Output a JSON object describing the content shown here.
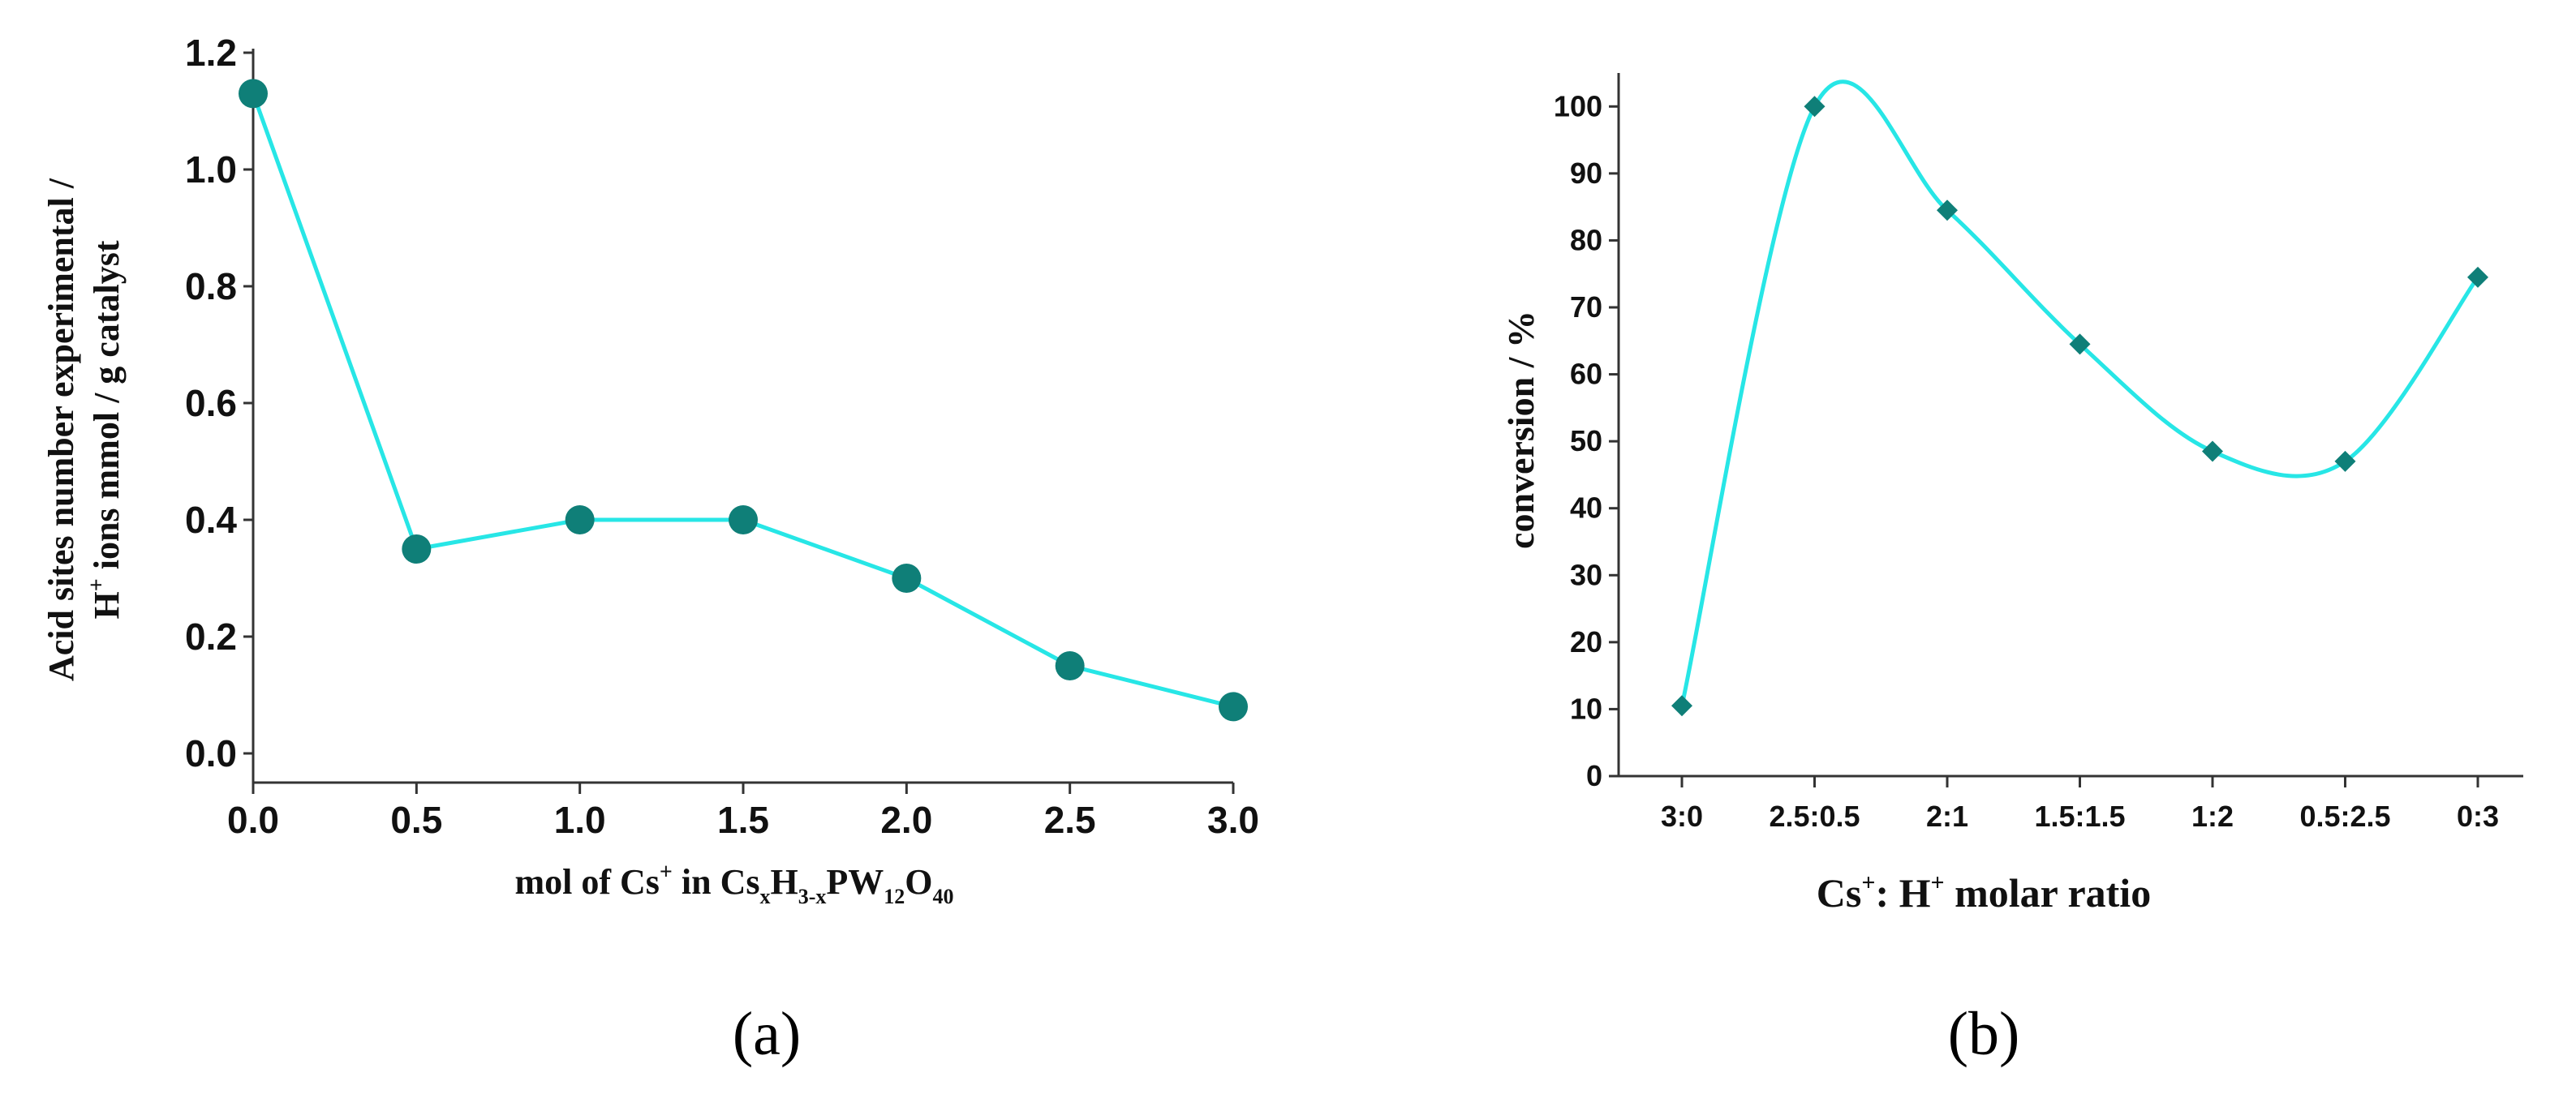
{
  "colors": {
    "line": "#27e6e6",
    "marker": "#0f7f78",
    "axis": "#333333",
    "text": "#111111"
  },
  "chart_data": [
    {
      "type": "line",
      "panel_label": "(a)",
      "title": "",
      "xlabel": {
        "prefix": "mol of Cs",
        "sup": "+",
        "mid": " in Cs",
        "sub1": "x",
        "h": "H",
        "sub2": "3-x",
        "rest": "PW",
        "sub3": "12",
        "o": "O",
        "sub4": "40"
      },
      "ylabel": {
        "line1": "Acid sites number experimental /",
        "line2_prefix": "H",
        "line2_sup": "+",
        "line2_rest": " ions mmol / g catalyst"
      },
      "xlim": [
        0,
        3.0
      ],
      "ylim": [
        -0.05,
        1.2
      ],
      "xticks": [
        "0.0",
        "0.5",
        "1.0",
        "1.5",
        "2.0",
        "2.5",
        "3.0"
      ],
      "xtick_values": [
        0,
        0.5,
        1.0,
        1.5,
        2.0,
        2.5,
        3.0
      ],
      "yticks": [
        "0.0",
        "0.2",
        "0.4",
        "0.6",
        "0.8",
        "1.0",
        "1.2"
      ],
      "ytick_values": [
        0,
        0.2,
        0.4,
        0.6,
        0.8,
        1.0,
        1.2
      ],
      "x": [
        0,
        0.5,
        1.0,
        1.5,
        2.0,
        2.5,
        3.0
      ],
      "y": [
        1.13,
        0.35,
        0.4,
        0.4,
        0.3,
        0.15,
        0.08
      ],
      "marker": "circle",
      "curve": "straight"
    },
    {
      "type": "line",
      "panel_label": "(b)",
      "title": "",
      "xlabel": {
        "prefix": "Cs",
        "sup1": "+",
        "mid": ": H",
        "sup2": "+",
        "rest": " molar ratio"
      },
      "ylabel": "conversion / %",
      "categories": [
        "3:0",
        "2.5:0.5",
        "2:1",
        "1.5:1.5",
        "1:2",
        "0.5:2.5",
        "0:3"
      ],
      "ylim": [
        0,
        105
      ],
      "yticks": [
        "0",
        "10",
        "20",
        "30",
        "40",
        "50",
        "60",
        "70",
        "80",
        "90",
        "100"
      ],
      "ytick_values": [
        0,
        10,
        20,
        30,
        40,
        50,
        60,
        70,
        80,
        90,
        100
      ],
      "values": [
        10.5,
        100,
        84.5,
        64.5,
        48.5,
        47,
        74.5
      ],
      "marker": "diamond",
      "curve": "smooth"
    }
  ]
}
